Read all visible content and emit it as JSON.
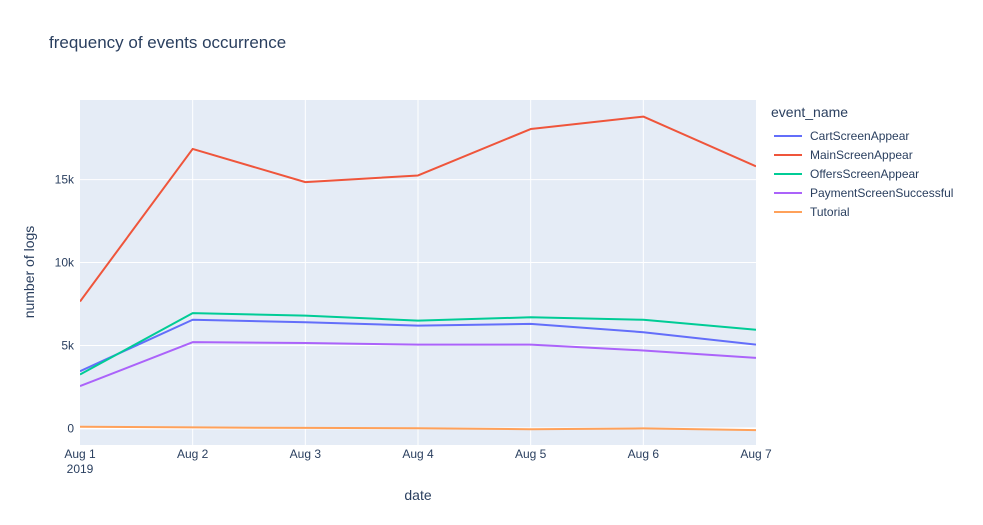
{
  "chart_data": {
    "type": "line",
    "title": "frequency of events occurrence",
    "xlabel": "date",
    "ylabel": "number of logs",
    "x": [
      "Aug 1\n2019",
      "Aug 2",
      "Aug 3",
      "Aug 4",
      "Aug 5",
      "Aug 6",
      "Aug 7"
    ],
    "ylim": [
      -1000,
      19800
    ],
    "yticks": [
      0,
      5000,
      10000,
      15000
    ],
    "ytick_labels": [
      "0",
      "5k",
      "10k",
      "15k"
    ],
    "legend_title": "event_name",
    "legend_position": "right",
    "grid": true,
    "background": "#e5ecf6",
    "series": [
      {
        "name": "CartScreenAppear",
        "color": "#636efa",
        "values": [
          3450,
          6550,
          6400,
          6200,
          6300,
          5800,
          5050
        ]
      },
      {
        "name": "MainScreenAppear",
        "color": "#ef553b",
        "values": [
          7650,
          16850,
          14850,
          15250,
          18050,
          18800,
          15800
        ]
      },
      {
        "name": "OffersScreenAppear",
        "color": "#00cc96",
        "values": [
          3250,
          6950,
          6800,
          6500,
          6700,
          6550,
          5950
        ]
      },
      {
        "name": "PaymentScreenSuccessful",
        "color": "#ab63fa",
        "values": [
          2550,
          5200,
          5150,
          5050,
          5050,
          4700,
          4250
        ]
      },
      {
        "name": "Tutorial",
        "color": "#ffa15a",
        "values": [
          100,
          60,
          30,
          10,
          -50,
          0,
          -100
        ]
      }
    ]
  }
}
